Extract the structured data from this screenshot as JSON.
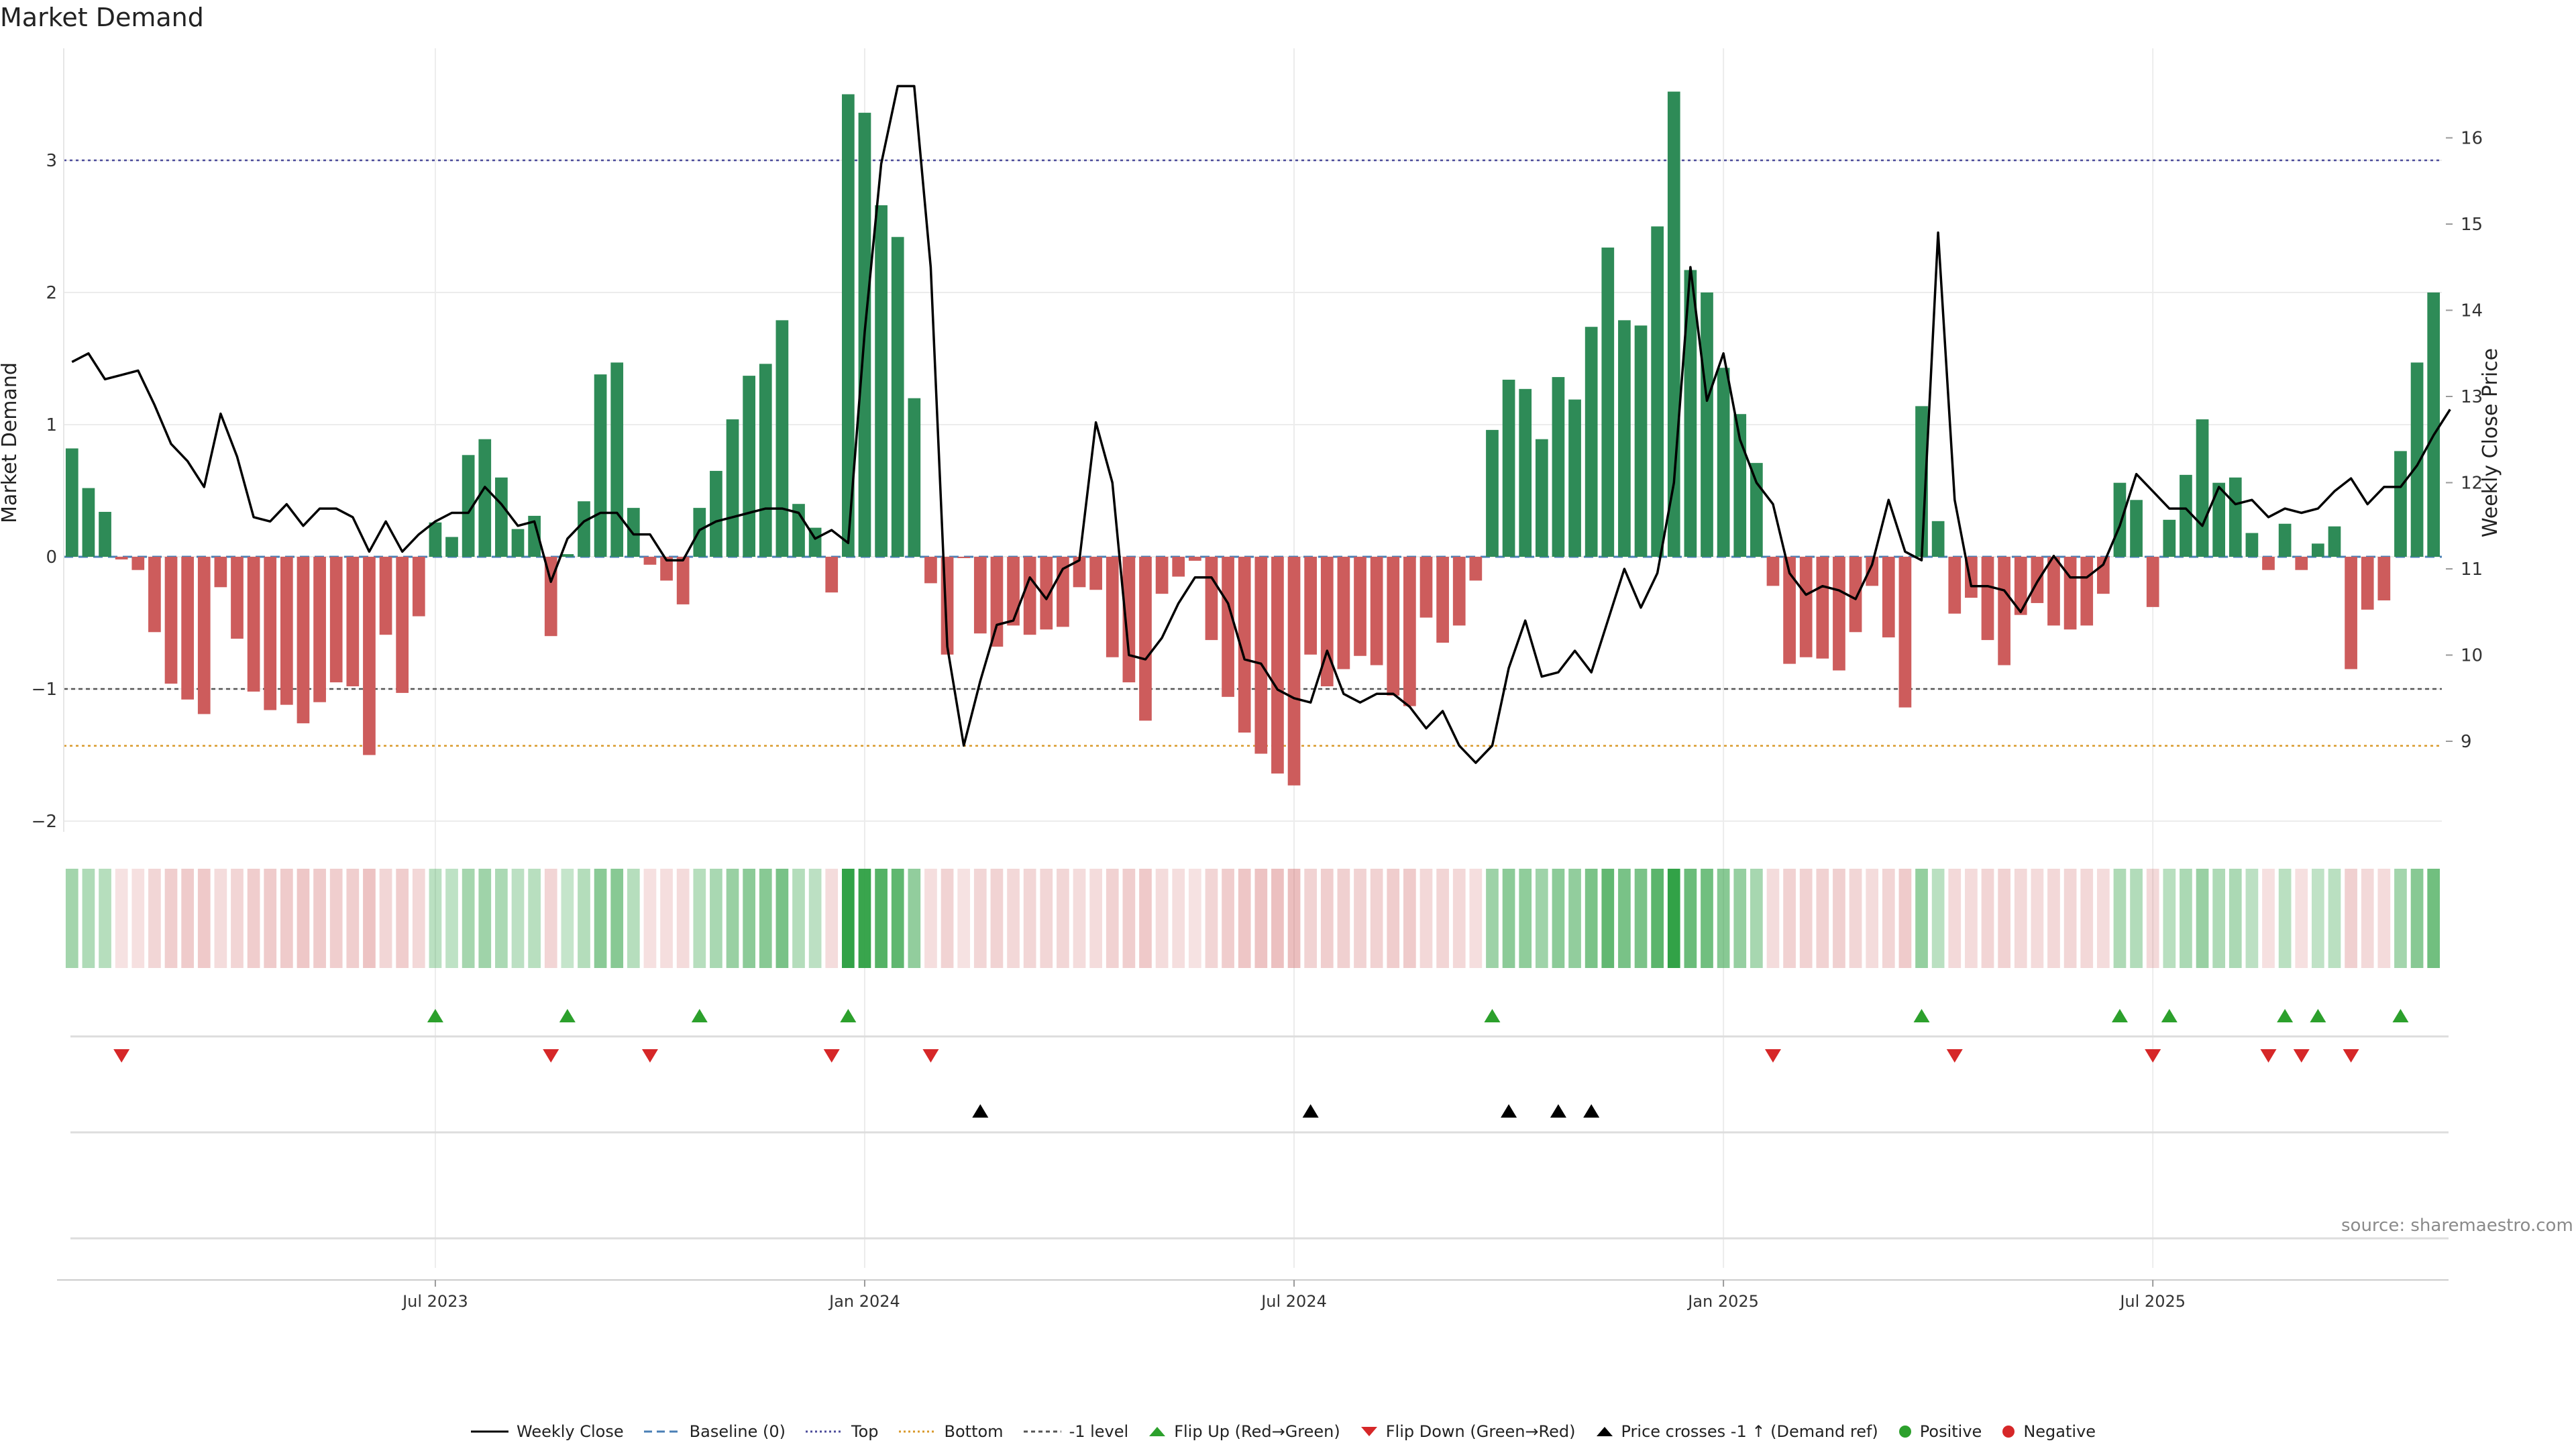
{
  "title": "Market Demand",
  "source": "source: sharemaestro.com",
  "colors": {
    "pos": "#2e8b57",
    "neg": "#cd5c5c",
    "price": "#000000",
    "top": "#4b4b9a",
    "bottom": "#d99a2b",
    "minus1": "#555555",
    "baseline": "#4a7fb5",
    "up": "#2ca02c",
    "down": "#d62728"
  },
  "chart_data": {
    "type": "bar",
    "title": "Market Demand",
    "xlabel": "",
    "ylabel": "Market Demand",
    "y2label": "Weekly Close Price",
    "ylim": [
      -2.5,
      3.8
    ],
    "y2lim": [
      8.2,
      16.85
    ],
    "y_ticks": [
      "−2",
      "−1",
      "0",
      "1",
      "2",
      "3"
    ],
    "y2_ticks": [
      "9",
      "10",
      "11",
      "12",
      "13",
      "14",
      "15",
      "16"
    ],
    "x_ticks": [
      {
        "week": 22,
        "label": "Jul 2023"
      },
      {
        "week": 48,
        "label": "Jan 2024"
      },
      {
        "week": 74,
        "label": "Jul 2024"
      },
      {
        "week": 100,
        "label": "Jan 2025"
      },
      {
        "week": 126,
        "label": "Jul 2025"
      }
    ],
    "reference_lines": {
      "top": 3.0,
      "bottom": -1.43,
      "minus1": -1.0,
      "baseline": 0
    },
    "demand": [
      0.82,
      0.52,
      0.34,
      -0.02,
      -0.1,
      -0.57,
      -0.96,
      -1.08,
      -1.19,
      -0.23,
      -0.62,
      -1.02,
      -1.16,
      -1.12,
      -1.26,
      -1.1,
      -0.95,
      -0.98,
      -1.5,
      -0.59,
      -1.03,
      -0.45,
      0.26,
      0.15,
      0.77,
      0.89,
      0.6,
      0.21,
      0.31,
      -0.6,
      0.02,
      0.42,
      1.38,
      1.47,
      0.37,
      -0.06,
      -0.18,
      -0.36,
      0.37,
      0.65,
      1.04,
      1.37,
      1.46,
      1.79,
      0.4,
      0.22,
      -0.27,
      3.5,
      3.36,
      2.66,
      2.42,
      1.2,
      -0.2,
      -0.74,
      -0.01,
      -0.58,
      -0.68,
      -0.52,
      -0.59,
      -0.55,
      -0.53,
      -0.23,
      -0.25,
      -0.76,
      -0.95,
      -1.24,
      -0.28,
      -0.15,
      -0.03,
      -0.63,
      -1.06,
      -1.33,
      -1.49,
      -1.64,
      -1.73,
      -0.74,
      -0.98,
      -0.85,
      -0.75,
      -0.82,
      -1.05,
      -1.13,
      -0.46,
      -0.65,
      -0.52,
      -0.18,
      0.96,
      1.34,
      1.27,
      0.89,
      1.36,
      1.19,
      1.74,
      2.34,
      1.79,
      1.75,
      2.5,
      3.52,
      2.17,
      2.0,
      1.43,
      1.08,
      0.71,
      -0.22,
      -0.81,
      -0.76,
      -0.77,
      -0.86,
      -0.57,
      -0.22,
      -0.61,
      -1.14,
      1.14,
      0.27,
      -0.43,
      -0.31,
      -0.63,
      -0.82,
      -0.44,
      -0.35,
      -0.52,
      -0.55,
      -0.52,
      -0.28,
      0.56,
      0.43,
      -0.38,
      0.28,
      0.62,
      1.04,
      0.56,
      0.6,
      0.18,
      -0.1,
      0.25,
      -0.1,
      0.1,
      0.23,
      -0.85,
      -0.4,
      -0.33,
      0.8,
      1.47,
      2.0
    ],
    "close": [
      13.4,
      13.5,
      13.2,
      13.25,
      13.3,
      12.9,
      12.45,
      12.25,
      11.95,
      12.8,
      12.3,
      11.6,
      11.55,
      11.75,
      11.5,
      11.7,
      11.7,
      11.6,
      11.2,
      11.55,
      11.2,
      11.4,
      11.55,
      11.65,
      11.65,
      11.95,
      11.75,
      11.5,
      11.55,
      10.85,
      11.35,
      11.55,
      11.65,
      11.65,
      11.4,
      11.4,
      11.1,
      11.1,
      11.45,
      11.55,
      11.6,
      11.65,
      11.7,
      11.7,
      11.65,
      11.35,
      11.45,
      11.3,
      13.75,
      15.7,
      16.6,
      16.6,
      14.5,
      10.1,
      8.95,
      9.7,
      10.35,
      10.4,
      10.9,
      10.65,
      11.0,
      11.1,
      12.7,
      12.0,
      10.0,
      9.95,
      10.2,
      10.6,
      10.9,
      10.9,
      10.6,
      9.95,
      9.9,
      9.6,
      9.5,
      9.45,
      10.05,
      9.55,
      9.45,
      9.55,
      9.55,
      9.4,
      9.15,
      9.35,
      8.95,
      8.75,
      8.95,
      9.85,
      10.4,
      9.75,
      9.8,
      10.05,
      9.8,
      10.4,
      11.0,
      10.55,
      10.95,
      12.0,
      14.5,
      12.95,
      13.5,
      12.5,
      12.0,
      11.75,
      10.95,
      10.7,
      10.8,
      10.75,
      10.65,
      11.05,
      11.8,
      11.2,
      11.1,
      14.9,
      11.8,
      10.8,
      10.8,
      10.75,
      10.5,
      10.85,
      11.15,
      10.9,
      10.9,
      11.05,
      11.5,
      12.1,
      11.9,
      11.7,
      11.7,
      11.5,
      11.95,
      11.75,
      11.8,
      11.6,
      11.7,
      11.65,
      11.7,
      11.9,
      12.05,
      11.75,
      11.95,
      11.95,
      12.2,
      12.55,
      12.85
    ]
  },
  "panels": {
    "flip_up": [
      22,
      30,
      38,
      47,
      86,
      112,
      124,
      127,
      134,
      136,
      141
    ],
    "flip_down": [
      3,
      29,
      35,
      46,
      52,
      103,
      114,
      126,
      133,
      135,
      138
    ],
    "price_cross": [
      55,
      75,
      87,
      90,
      92
    ]
  },
  "legend": [
    {
      "key": "weekly_close",
      "label": "Weekly Close"
    },
    {
      "key": "baseline",
      "label": "Baseline (0)"
    },
    {
      "key": "top",
      "label": "Top"
    },
    {
      "key": "bottom",
      "label": "Bottom"
    },
    {
      "key": "minus1",
      "label": "-1 level"
    },
    {
      "key": "flip_up",
      "label": "Flip Up (Red→Green)"
    },
    {
      "key": "flip_down",
      "label": "Flip Down (Green→Red)"
    },
    {
      "key": "price_cross",
      "label": "Price crosses -1 ↑ (Demand ref)"
    },
    {
      "key": "positive",
      "label": "Positive"
    },
    {
      "key": "negative",
      "label": "Negative"
    }
  ]
}
